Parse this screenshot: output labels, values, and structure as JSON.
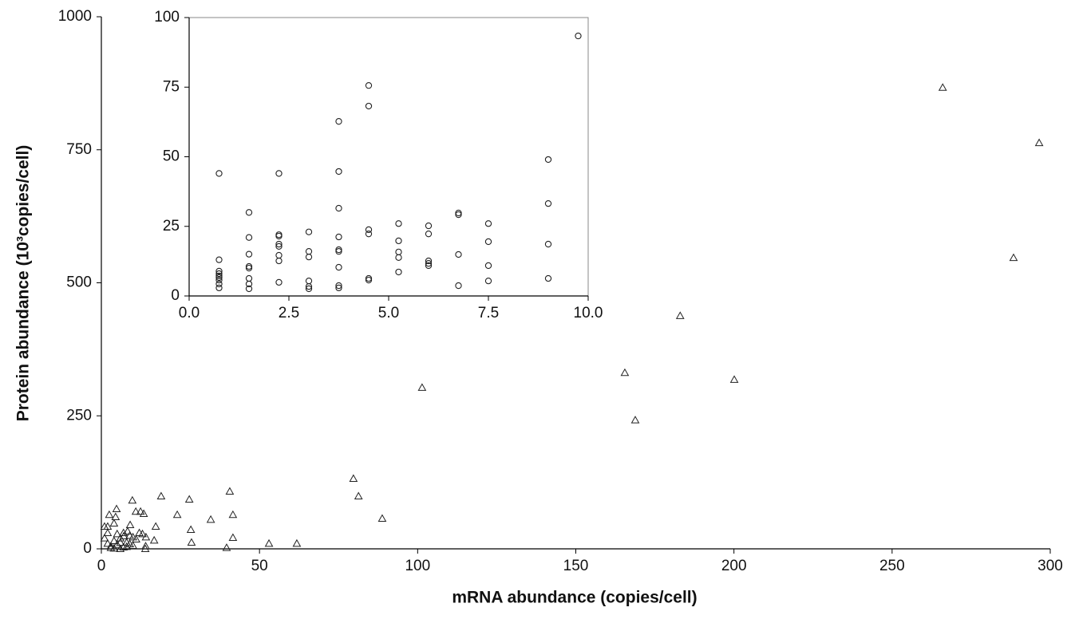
{
  "chart_data": [
    {
      "type": "scatter",
      "marker": "triangle",
      "color": "#222",
      "x_label": "mRNA abundance (copies/cell)",
      "y_label": "Protein abundance (10³copies/cell)",
      "xlim": [
        0,
        300
      ],
      "xticks": [
        0,
        50,
        100,
        150,
        200,
        250,
        300
      ],
      "ylim": [
        0,
        1000
      ],
      "yticks": [
        0,
        250,
        500,
        750,
        1000
      ],
      "x": [
        266,
        296.5,
        288.4,
        183,
        165.5,
        200.1,
        168.8,
        101.4,
        79.7,
        81.3,
        88.8,
        40.6,
        41.6,
        41.6,
        39.6,
        53,
        61.8,
        34.6,
        28.3,
        28.5,
        27.8,
        18.9,
        24,
        17.2,
        16.7,
        14.1,
        13.9,
        13.4,
        12.4,
        10.9,
        9.8,
        9.1,
        8.3,
        7.1,
        4.8,
        4.5,
        4,
        2.5,
        1,
        2,
        2,
        3,
        4,
        5,
        6,
        7,
        8,
        9,
        10,
        11,
        12,
        13,
        14,
        1,
        2,
        5,
        6,
        8,
        9,
        10,
        3,
        4,
        6,
        7
      ],
      "values": [
        867,
        763,
        547,
        438,
        331,
        318,
        242,
        303,
        132,
        99,
        57,
        108,
        64,
        21,
        2,
        10,
        10,
        55,
        36,
        12,
        93,
        99,
        64,
        42,
        16,
        22,
        0,
        66,
        70,
        70,
        91,
        45,
        33,
        24,
        75,
        60,
        48,
        64,
        42,
        42,
        10,
        5,
        15,
        8,
        20,
        3,
        12,
        25,
        6,
        18,
        30,
        28,
        5,
        20,
        30,
        28,
        12,
        4,
        9,
        22,
        2,
        1,
        0,
        30
      ]
    },
    {
      "type": "scatter",
      "marker": "circle",
      "color": "#222",
      "xlim": [
        0,
        10
      ],
      "xticks": [
        {
          "value": 0,
          "label": "0.0"
        },
        2.5,
        {
          "value": 5,
          "label": "5.0"
        },
        7.5,
        {
          "value": 10,
          "label": "10.0"
        }
      ],
      "ylim": [
        0,
        100
      ],
      "yticks": [
        0,
        25,
        50,
        75,
        100
      ],
      "x": [
        0.75,
        0.75,
        0.75,
        0.75,
        0.75,
        0.75,
        0.75,
        0.75,
        0.75,
        1.5,
        1.5,
        1.5,
        1.5,
        1.5,
        1.5,
        1.5,
        1.5,
        2.25,
        2.25,
        2.25,
        2.25,
        2.25,
        2.25,
        2.25,
        2.25,
        3,
        3,
        3,
        3,
        3,
        3,
        3.75,
        3.75,
        3.75,
        3.75,
        3.75,
        3.75,
        3.75,
        3.75,
        3.75,
        4.5,
        4.5,
        4.5,
        4.5,
        4.5,
        4.5,
        5.25,
        5.25,
        5.25,
        5.25,
        5.25,
        6,
        6,
        6,
        6,
        6,
        6.75,
        6.75,
        6.75,
        6.75,
        7.5,
        7.5,
        7.5,
        7.5,
        9,
        9,
        9,
        9,
        9.75
      ],
      "values": [
        44,
        13,
        8.9,
        8,
        7.2,
        6.6,
        5.7,
        4.3,
        2.9,
        30,
        21,
        15,
        10.6,
        10,
        6.3,
        4.3,
        2.6,
        44,
        22,
        21.5,
        18.6,
        17.8,
        14.6,
        12.6,
        4.9,
        23,
        16,
        14,
        5.4,
        3.4,
        2.6,
        62.7,
        44.7,
        31.5,
        21.2,
        16.6,
        16,
        10.3,
        3.7,
        2.9,
        75.6,
        68.2,
        23.8,
        22.3,
        6.3,
        5.7,
        26,
        19.8,
        15.8,
        13.8,
        8.6,
        25.2,
        22.3,
        12.6,
        11.7,
        10.9,
        29.8,
        29.2,
        14.9,
        3.7,
        26,
        19.5,
        10.9,
        5.4,
        49,
        33.2,
        18.6,
        6.3,
        93.4
      ]
    }
  ]
}
